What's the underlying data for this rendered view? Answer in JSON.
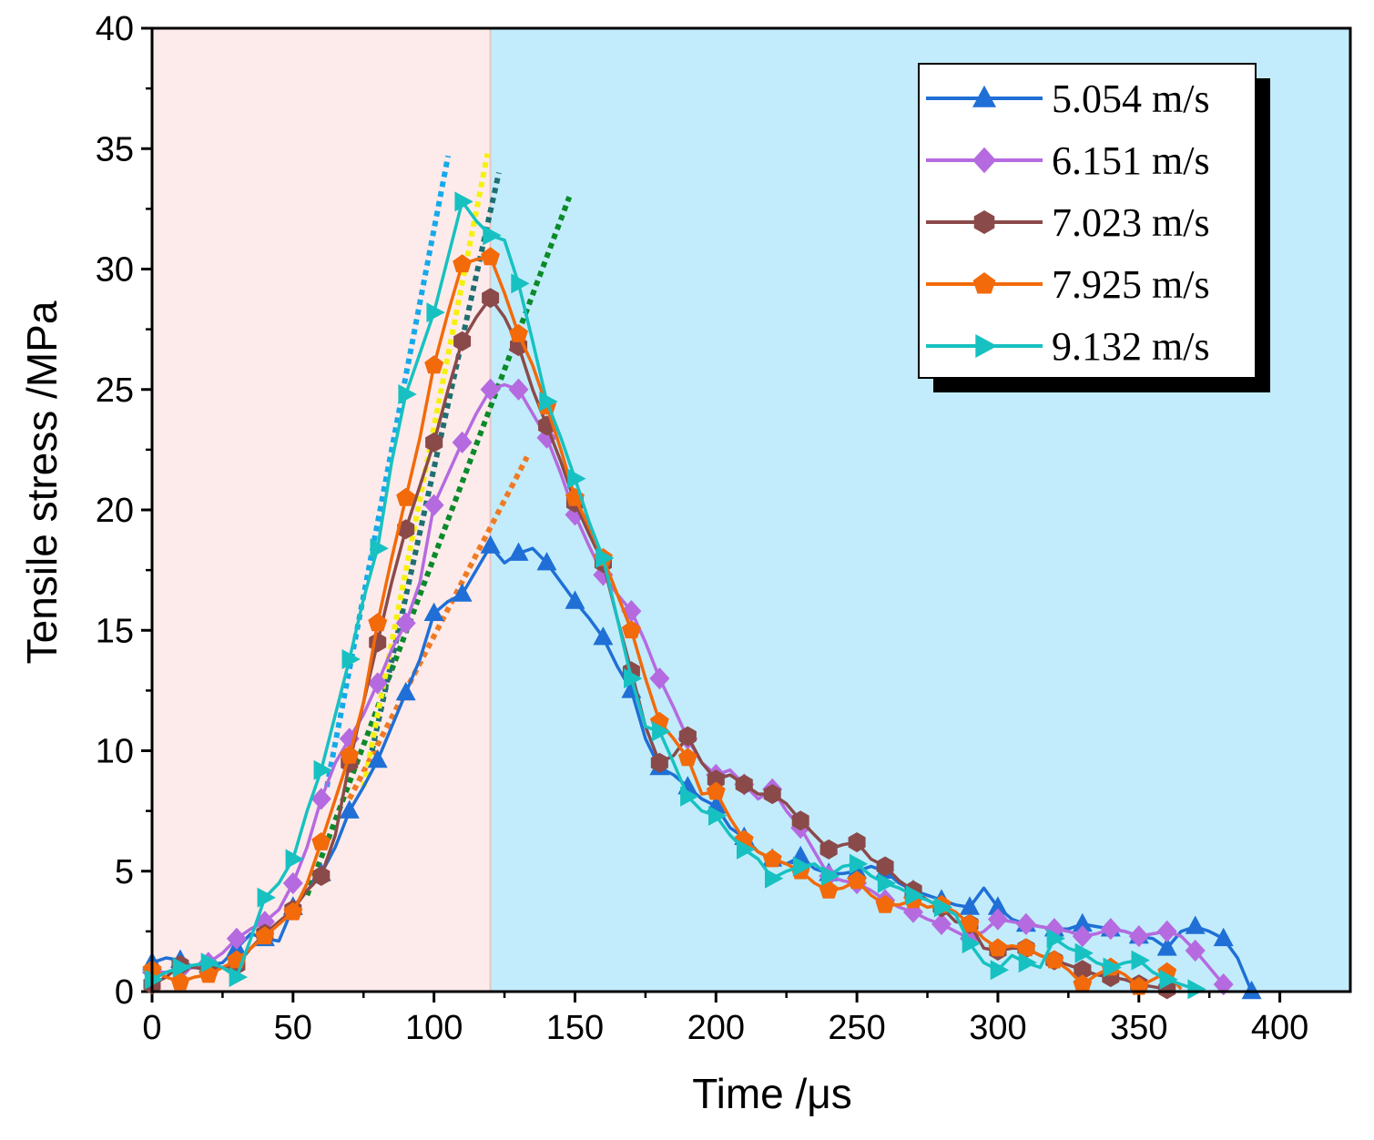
{
  "chart_data": {
    "type": "line",
    "title": "",
    "xlabel": "Time /μs",
    "ylabel": "Tensile stress /MPa",
    "xlim": [
      0,
      425
    ],
    "ylim": [
      0,
      40
    ],
    "xticks": [
      0,
      50,
      100,
      150,
      200,
      250,
      300,
      350,
      400
    ],
    "yticks": [
      0,
      5,
      10,
      15,
      20,
      25,
      30,
      35,
      40
    ],
    "regions": [
      {
        "name": "pre-peak",
        "x0": 0,
        "x1": 120,
        "color": "#fcebea"
      },
      {
        "name": "post-peak",
        "x0": 120,
        "x1": 425,
        "color": "#c2ecfb"
      }
    ],
    "legend_position": "top-right",
    "series": [
      {
        "name": "5.054 m/s",
        "color": "#1f6fd6",
        "marker": "triangle-up",
        "x": [
          0,
          5,
          10,
          15,
          20,
          25,
          30,
          35,
          40,
          45,
          50,
          55,
          60,
          65,
          70,
          75,
          80,
          85,
          90,
          95,
          100,
          105,
          110,
          115,
          120,
          125,
          130,
          135,
          140,
          145,
          150,
          155,
          160,
          165,
          170,
          175,
          180,
          185,
          190,
          195,
          200,
          205,
          210,
          215,
          220,
          225,
          230,
          235,
          240,
          245,
          250,
          255,
          260,
          265,
          270,
          275,
          280,
          285,
          290,
          295,
          300,
          305,
          310,
          315,
          320,
          325,
          330,
          335,
          340,
          345,
          350,
          355,
          360,
          365,
          370,
          375,
          380,
          385,
          390
        ],
        "y": [
          1.2,
          1.4,
          1.3,
          1.0,
          1.1,
          1.2,
          1.8,
          2.4,
          2.2,
          2.1,
          3.5,
          4.2,
          4.9,
          6.0,
          7.5,
          8.5,
          9.6,
          11.0,
          12.4,
          13.8,
          15.7,
          16.2,
          16.5,
          17.5,
          18.5,
          17.8,
          18.2,
          18.4,
          17.8,
          17.0,
          16.2,
          15.5,
          14.7,
          13.5,
          12.5,
          10.5,
          9.3,
          9.0,
          8.5,
          8.0,
          7.7,
          6.8,
          6.4,
          5.8,
          5.5,
          5.3,
          5.6,
          5.1,
          4.9,
          4.9,
          5.0,
          5.2,
          5.0,
          4.5,
          4.2,
          4.0,
          3.8,
          3.6,
          3.5,
          4.3,
          3.5,
          3.0,
          2.8,
          2.7,
          2.6,
          2.6,
          2.8,
          2.7,
          2.6,
          2.5,
          2.3,
          2.2,
          1.8,
          2.5,
          2.7,
          2.5,
          2.2,
          1.4,
          0
        ]
      },
      {
        "name": "6.151 m/s",
        "color": "#b56ae0",
        "marker": "diamond",
        "x": [
          0,
          5,
          10,
          15,
          20,
          25,
          30,
          35,
          40,
          45,
          50,
          55,
          60,
          65,
          70,
          75,
          80,
          85,
          90,
          95,
          100,
          105,
          110,
          115,
          120,
          125,
          130,
          135,
          140,
          145,
          150,
          155,
          160,
          165,
          170,
          175,
          180,
          185,
          190,
          195,
          200,
          205,
          210,
          215,
          220,
          225,
          230,
          235,
          240,
          245,
          250,
          255,
          260,
          265,
          270,
          275,
          280,
          285,
          290,
          295,
          300,
          305,
          310,
          315,
          320,
          325,
          330,
          335,
          340,
          345,
          350,
          355,
          360,
          365,
          370,
          375,
          380
        ],
        "y": [
          0.8,
          0.8,
          0.9,
          1.0,
          1.2,
          1.6,
          2.2,
          2.6,
          2.9,
          3.4,
          4.5,
          6.0,
          8.0,
          9.5,
          10.5,
          11.5,
          12.8,
          14.2,
          15.3,
          17.0,
          20.2,
          21.5,
          22.8,
          24.0,
          25.0,
          25.2,
          25.0,
          24.0,
          23.0,
          21.5,
          19.8,
          18.5,
          17.3,
          16.5,
          15.8,
          14.5,
          13.0,
          11.8,
          10.5,
          9.5,
          9.0,
          9.2,
          8.6,
          8.0,
          8.4,
          7.5,
          6.8,
          5.8,
          4.8,
          4.6,
          4.5,
          4.2,
          3.8,
          3.5,
          3.3,
          3.0,
          2.8,
          2.5,
          2.2,
          2.5,
          3.0,
          2.9,
          2.8,
          2.7,
          2.6,
          2.5,
          2.3,
          2.4,
          2.6,
          2.5,
          2.3,
          2.4,
          2.5,
          2.3,
          1.7,
          1.0,
          0.3
        ]
      },
      {
        "name": "7.023 m/s",
        "color": "#8b4a4a",
        "marker": "hexagon",
        "x": [
          0,
          5,
          10,
          15,
          20,
          25,
          30,
          35,
          40,
          45,
          50,
          55,
          60,
          65,
          70,
          75,
          80,
          85,
          90,
          95,
          100,
          105,
          110,
          115,
          120,
          125,
          130,
          135,
          140,
          145,
          150,
          155,
          160,
          165,
          170,
          175,
          180,
          185,
          190,
          195,
          200,
          205,
          210,
          215,
          220,
          225,
          230,
          235,
          240,
          245,
          250,
          255,
          260,
          265,
          270,
          275,
          280,
          285,
          290,
          295,
          300,
          305,
          310,
          315,
          320,
          325,
          330,
          335,
          340,
          345,
          350,
          355,
          360
        ],
        "y": [
          0.3,
          0.6,
          1.1,
          1.0,
          0.9,
          1.0,
          1.1,
          1.8,
          2.4,
          2.9,
          3.4,
          4.2,
          4.8,
          6.5,
          9.5,
          12.0,
          14.5,
          17.0,
          19.2,
          21.0,
          22.8,
          25.0,
          27.0,
          28.0,
          28.8,
          28.0,
          26.8,
          25.0,
          23.5,
          22.0,
          20.3,
          19.0,
          17.8,
          15.5,
          13.3,
          11.0,
          9.5,
          9.8,
          10.6,
          9.5,
          8.8,
          9.0,
          8.6,
          8.2,
          8.2,
          7.8,
          7.1,
          6.5,
          5.9,
          6.1,
          6.2,
          5.5,
          5.2,
          4.6,
          4.2,
          3.8,
          3.5,
          2.9,
          2.8,
          1.8,
          1.7,
          1.8,
          1.8,
          1.5,
          1.3,
          1.1,
          0.9,
          0.7,
          0.6,
          0.5,
          0.3,
          0.2,
          0.1
        ]
      },
      {
        "name": "7.925 m/s",
        "color": "#f26a0a",
        "marker": "pentagon",
        "x": [
          0,
          5,
          10,
          15,
          20,
          25,
          30,
          35,
          40,
          45,
          50,
          55,
          60,
          65,
          70,
          75,
          80,
          85,
          90,
          95,
          100,
          105,
          110,
          115,
          120,
          125,
          130,
          135,
          140,
          145,
          150,
          155,
          160,
          165,
          170,
          175,
          180,
          185,
          190,
          195,
          200,
          205,
          210,
          215,
          220,
          225,
          230,
          235,
          240,
          245,
          250,
          255,
          260,
          265,
          270,
          275,
          280,
          285,
          290,
          295,
          300,
          305,
          310,
          315,
          320,
          325,
          330,
          335,
          340,
          345,
          350,
          355,
          360,
          365
        ],
        "y": [
          0.9,
          0.6,
          0.4,
          0.6,
          0.7,
          1.0,
          1.3,
          1.8,
          2.3,
          2.8,
          3.3,
          4.5,
          6.2,
          8.0,
          9.8,
          12.0,
          15.3,
          18.0,
          20.5,
          23.0,
          26.0,
          28.2,
          30.2,
          30.4,
          30.5,
          29.0,
          27.3,
          26.0,
          24.3,
          22.5,
          20.5,
          19.3,
          18.0,
          16.5,
          15.0,
          13.0,
          11.2,
          10.5,
          9.7,
          8.2,
          8.3,
          7.2,
          6.3,
          5.8,
          5.5,
          5.3,
          5.0,
          4.5,
          4.2,
          4.3,
          4.6,
          4.0,
          3.6,
          3.6,
          3.8,
          3.5,
          3.6,
          3.3,
          2.8,
          2.2,
          1.8,
          1.9,
          1.8,
          1.5,
          1.3,
          0.9,
          0.3,
          0.7,
          1.0,
          0.7,
          0.2,
          0.5,
          0.8,
          0.1
        ]
      },
      {
        "name": "9.132 m/s",
        "color": "#17c1c1",
        "marker": "triangle-right",
        "x": [
          0,
          5,
          10,
          15,
          20,
          25,
          30,
          35,
          40,
          45,
          50,
          55,
          60,
          65,
          70,
          75,
          80,
          85,
          90,
          95,
          100,
          105,
          110,
          115,
          120,
          125,
          130,
          135,
          140,
          145,
          150,
          155,
          160,
          165,
          170,
          175,
          180,
          185,
          190,
          195,
          200,
          205,
          210,
          215,
          220,
          225,
          230,
          235,
          240,
          245,
          250,
          255,
          260,
          265,
          270,
          275,
          280,
          285,
          290,
          295,
          300,
          305,
          310,
          315,
          320,
          325,
          330,
          335,
          340,
          345,
          350,
          355,
          360,
          365,
          370
        ],
        "y": [
          0.5,
          0.8,
          1.0,
          1.1,
          1.2,
          1.0,
          0.6,
          2.2,
          3.9,
          4.5,
          5.5,
          7.5,
          9.2,
          11.5,
          13.8,
          16.3,
          18.4,
          22.0,
          24.8,
          26.5,
          28.2,
          30.5,
          32.8,
          32.0,
          31.4,
          31.2,
          29.4,
          27.0,
          24.5,
          23.0,
          21.3,
          19.5,
          18.0,
          15.5,
          13.0,
          11.0,
          10.8,
          9.5,
          8.1,
          7.5,
          7.3,
          6.5,
          5.9,
          5.5,
          4.7,
          5.0,
          5.2,
          5.3,
          4.8,
          5.2,
          5.3,
          4.8,
          4.5,
          4.3,
          4.0,
          3.8,
          3.5,
          3.2,
          2.0,
          1.2,
          0.9,
          1.5,
          1.2,
          1.0,
          2.2,
          1.8,
          1.6,
          1.2,
          1.0,
          1.2,
          1.3,
          0.8,
          0.5,
          0.3,
          0.1
        ]
      }
    ],
    "trend_lines": [
      {
        "color": "#f07a22",
        "x": [
          70,
          133
        ],
        "y": [
          8.0,
          22.2
        ]
      },
      {
        "color": "#0b8a2a",
        "x": [
          55,
          148
        ],
        "y": [
          4.0,
          33.0
        ]
      },
      {
        "color": "#1e6f72",
        "x": [
          78,
          123
        ],
        "y": [
          10.0,
          34.0
        ]
      },
      {
        "color": "#f5f10d",
        "x": [
          75,
          119
        ],
        "y": [
          8.5,
          34.8
        ]
      },
      {
        "color": "#16a9e9",
        "x": [
          62,
          105
        ],
        "y": [
          8.5,
          34.7
        ]
      }
    ]
  }
}
